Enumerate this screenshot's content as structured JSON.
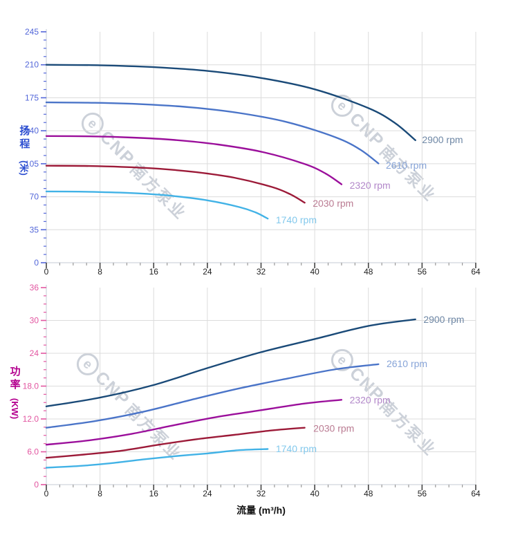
{
  "watermark": {
    "logo": "e",
    "brand": "CNP",
    "cn": "南方泵业"
  },
  "colors": {
    "grid": "#dcdcdc",
    "axis_line": "#c6cbd4",
    "x_tick_major": "#444444",
    "x_tick_minor": "#999999",
    "x_tick_label": "#222222"
  },
  "x_axis": {
    "title": "流量 (m³/h)",
    "labels": [
      "0",
      "8",
      "16",
      "24",
      "32",
      "40",
      "48",
      "56",
      "64"
    ],
    "min": 0,
    "max": 64,
    "major_step": 8,
    "minor_step": 2
  },
  "chart_data": [
    {
      "type": "line",
      "name": "head-curves",
      "ylabel": "扬程",
      "ylabel_unit": "(米)",
      "ylim": [
        0,
        245
      ],
      "ytick_step": 35,
      "yminor_step": 8.75,
      "ytick_labels": [
        "245",
        "210",
        "175",
        "140",
        "105",
        "70",
        "35",
        "0"
      ],
      "axis_color": "#5266d9",
      "grid": true,
      "legend_position": "end-of-curve",
      "series": [
        {
          "name": "2900 rpm",
          "color": "#1a4a78",
          "label_color": "#6e87a5",
          "points": [
            [
              0,
              210
            ],
            [
              8,
              209.5
            ],
            [
              16,
              207.5
            ],
            [
              24,
              203.5
            ],
            [
              32,
              196
            ],
            [
              40,
              184
            ],
            [
              48,
              164
            ],
            [
              52,
              148
            ],
            [
              55,
              130
            ]
          ],
          "label_at": [
            56.0,
            130.5
          ]
        },
        {
          "name": "2610 rpm",
          "color": "#4a74c8",
          "label_color": "#87a4d8",
          "points": [
            [
              0,
              170.1
            ],
            [
              7.2,
              169.7
            ],
            [
              14.4,
              168.1
            ],
            [
              21.6,
              164.8
            ],
            [
              28.8,
              158.8
            ],
            [
              36,
              149
            ],
            [
              43.2,
              132.8
            ],
            [
              46.8,
              119.9
            ],
            [
              49.5,
              105.3
            ]
          ],
          "label_at": [
            50.6,
            103.5
          ]
        },
        {
          "name": "2320 rpm",
          "color": "#9b0f9b",
          "label_color": "#b287c9",
          "points": [
            [
              0,
              134.4
            ],
            [
              6.4,
              134.1
            ],
            [
              12.8,
              132.8
            ],
            [
              19.2,
              130.2
            ],
            [
              25.6,
              125.4
            ],
            [
              32,
              117.8
            ],
            [
              38.4,
              105
            ],
            [
              41.6,
              94.7
            ],
            [
              44,
              83.2
            ]
          ],
          "label_at": [
            45.2,
            82.0
          ]
        },
        {
          "name": "2030 rpm",
          "color": "#9c1a38",
          "label_color": "#ba7b92",
          "points": [
            [
              0,
              102.9
            ],
            [
              5.6,
              102.7
            ],
            [
              11.2,
              101.7
            ],
            [
              16.8,
              99.7
            ],
            [
              22.4,
              96
            ],
            [
              28,
              90.2
            ],
            [
              33.6,
              80.4
            ],
            [
              36.4,
              72.5
            ],
            [
              38.5,
              63.7
            ]
          ],
          "label_at": [
            39.7,
            63.0
          ]
        },
        {
          "name": "1740 rpm",
          "color": "#41b2e6",
          "label_color": "#82c8ec",
          "points": [
            [
              0,
              75.6
            ],
            [
              4.8,
              75.4
            ],
            [
              9.6,
              74.7
            ],
            [
              14.4,
              73.3
            ],
            [
              19.2,
              70.6
            ],
            [
              24,
              66.2
            ],
            [
              28.8,
              59
            ],
            [
              31.2,
              53.3
            ],
            [
              33,
              46.8
            ]
          ],
          "label_at": [
            34.2,
            45.5
          ]
        }
      ]
    },
    {
      "type": "line",
      "name": "power-curves",
      "ylabel": "功率",
      "ylabel_unit": "(KW)",
      "ylim": [
        0,
        36
      ],
      "ytick_step": 6,
      "yminor_step": 1.5,
      "ytick_labels": [
        "36",
        "30",
        "24",
        "18.0",
        "12.0",
        "6.0",
        "0"
      ],
      "axis_color": "#e255a0",
      "grid": true,
      "legend_position": "end-of-curve",
      "series": [
        {
          "name": "2900 rpm",
          "color": "#1a4a78",
          "label_color": "#6e87a5",
          "points": [
            [
              0,
              14.3
            ],
            [
              8,
              15.9
            ],
            [
              16,
              18.2
            ],
            [
              24,
              21.3
            ],
            [
              32,
              24.2
            ],
            [
              40,
              26.6
            ],
            [
              48,
              29.0
            ],
            [
              55,
              30.2
            ]
          ],
          "label_at": [
            56.2,
            30.2
          ]
        },
        {
          "name": "2610 rpm",
          "color": "#4a74c8",
          "label_color": "#87a4d8",
          "points": [
            [
              0,
              10.4
            ],
            [
              7.2,
              11.6
            ],
            [
              14.4,
              13.3
            ],
            [
              21.6,
              15.5
            ],
            [
              28.8,
              17.6
            ],
            [
              36,
              19.4
            ],
            [
              43.2,
              21.1
            ],
            [
              49.5,
              22.0
            ]
          ],
          "label_at": [
            50.7,
            22.1
          ]
        },
        {
          "name": "2320 rpm",
          "color": "#9b0f9b",
          "label_color": "#b287c9",
          "points": [
            [
              0,
              7.3
            ],
            [
              6.4,
              8.1
            ],
            [
              12.8,
              9.3
            ],
            [
              19.2,
              10.9
            ],
            [
              25.6,
              12.4
            ],
            [
              32,
              13.6
            ],
            [
              38.4,
              14.8
            ],
            [
              44,
              15.5
            ]
          ],
          "label_at": [
            45.2,
            15.5
          ]
        },
        {
          "name": "2030 rpm",
          "color": "#9c1a38",
          "label_color": "#ba7b92",
          "points": [
            [
              0,
              4.9
            ],
            [
              5.6,
              5.5
            ],
            [
              11.2,
              6.2
            ],
            [
              16.8,
              7.3
            ],
            [
              22.4,
              8.3
            ],
            [
              28,
              9.1
            ],
            [
              33.6,
              9.9
            ],
            [
              38.5,
              10.4
            ]
          ],
          "label_at": [
            39.8,
            10.3
          ]
        },
        {
          "name": "1740 rpm",
          "color": "#41b2e6",
          "label_color": "#82c8ec",
          "points": [
            [
              0,
              3.1
            ],
            [
              4.8,
              3.4
            ],
            [
              9.6,
              3.9
            ],
            [
              14.4,
              4.6
            ],
            [
              19.2,
              5.2
            ],
            [
              24,
              5.7
            ],
            [
              28.8,
              6.3
            ],
            [
              33,
              6.5
            ]
          ],
          "label_at": [
            34.2,
            6.6
          ]
        }
      ]
    }
  ]
}
